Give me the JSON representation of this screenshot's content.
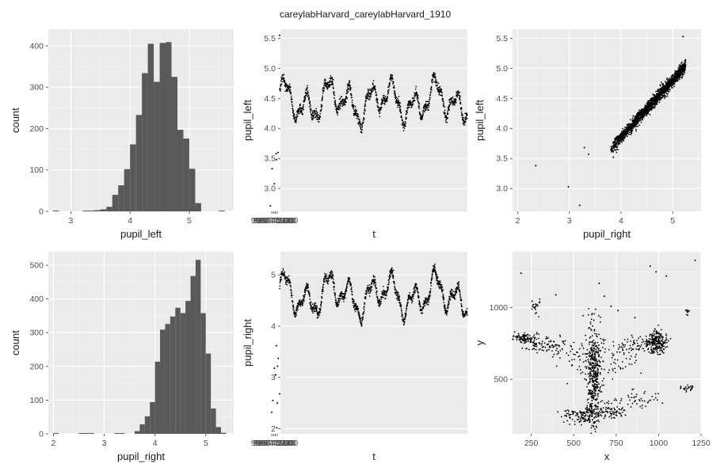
{
  "figure_title": "careylabHarvard_careylabHarvard_1910",
  "colors": {
    "panel": "#ebebeb",
    "grid_major": "#ffffff",
    "bar": "#595959",
    "point": "#000000",
    "text": "#4d4d4d"
  },
  "chart_data": [
    {
      "type": "bar",
      "xlabel": "pupil_left",
      "ylabel": "count",
      "xlim": [
        2.62,
        5.75
      ],
      "ylim": [
        0,
        440
      ],
      "xticks": [
        3,
        4,
        5
      ],
      "yticks": [
        0,
        100,
        200,
        300,
        400
      ],
      "bins": [
        {
          "x": 2.75,
          "v": 1
        },
        {
          "x": 3.25,
          "v": 1
        },
        {
          "x": 3.35,
          "v": 2
        },
        {
          "x": 3.45,
          "v": 3
        },
        {
          "x": 3.55,
          "v": 5
        },
        {
          "x": 3.65,
          "v": 11
        },
        {
          "x": 3.75,
          "v": 40
        },
        {
          "x": 3.85,
          "v": 63
        },
        {
          "x": 3.95,
          "v": 102
        },
        {
          "x": 4.05,
          "v": 162
        },
        {
          "x": 4.15,
          "v": 233
        },
        {
          "x": 4.25,
          "v": 334
        },
        {
          "x": 4.35,
          "v": 405
        },
        {
          "x": 4.45,
          "v": 313
        },
        {
          "x": 4.55,
          "v": 407
        },
        {
          "x": 4.65,
          "v": 409
        },
        {
          "x": 4.75,
          "v": 325
        },
        {
          "x": 4.85,
          "v": 197
        },
        {
          "x": 4.95,
          "v": 176
        },
        {
          "x": 5.05,
          "v": 103
        },
        {
          "x": 5.15,
          "v": 20
        },
        {
          "x": 5.55,
          "v": 1
        }
      ],
      "bin_width": 0.1
    },
    {
      "type": "scatter",
      "xlabel": "t",
      "ylabel": "pupil_left",
      "xlim": [
        998735500,
        998476300
      ],
      "ylim": [
        2.62,
        5.65
      ],
      "xticks": [
        998740000,
        998742500,
        998745000,
        998747500
      ],
      "xtick_labels": [
        "998740000",
        "998742500",
        "998745000",
        "998747500"
      ],
      "yticks": [
        3.0,
        3.5,
        4.0,
        4.5,
        5.0,
        5.5
      ],
      "ytick_labels": [
        "3.0",
        "3.5",
        "4.0",
        "4.5",
        "5.0",
        "5.5"
      ],
      "trend": {
        "x_start": 998736500,
        "x_end": 998476300,
        "mean": 4.45,
        "amplitude": 0.38
      },
      "outliers": [
        [
          998736800,
          5.55
        ],
        [
          998741000,
          3.48
        ],
        [
          998744000,
          3.08
        ],
        [
          998747000,
          3.33
        ],
        [
          998749500,
          2.71
        ],
        [
          998741500,
          3.58
        ],
        [
          998738800,
          3.6
        ]
      ]
    },
    {
      "type": "scatter",
      "xlabel": "pupil_right",
      "ylabel": "pupil_left",
      "xlim": [
        1.9,
        5.55
      ],
      "ylim": [
        2.62,
        5.65
      ],
      "xticks": [
        2,
        3,
        4,
        5
      ],
      "yticks": [
        3.0,
        3.5,
        4.0,
        4.5,
        5.0,
        5.5
      ],
      "ytick_labels": [
        "3.0",
        "3.5",
        "4.0",
        "4.5",
        "5.0",
        "5.5"
      ],
      "relation": {
        "slope": 0.95,
        "intercept": 0.05,
        "x_range": [
          3.8,
          5.25
        ]
      },
      "outliers": [
        [
          2.35,
          3.38
        ],
        [
          2.98,
          3.03
        ],
        [
          3.2,
          2.72
        ],
        [
          3.29,
          3.68
        ],
        [
          3.37,
          3.57
        ],
        [
          5.2,
          5.53
        ],
        [
          3.85,
          3.52
        ]
      ]
    },
    {
      "type": "bar",
      "xlabel": "pupil_right",
      "ylabel": "count",
      "xlim": [
        1.9,
        5.55
      ],
      "ylim": [
        0,
        540
      ],
      "xticks": [
        2,
        3,
        4,
        5
      ],
      "yticks": [
        0,
        100,
        200,
        300,
        400,
        500
      ],
      "bins": [
        {
          "x": 2.05,
          "v": 1
        },
        {
          "x": 2.55,
          "v": 1
        },
        {
          "x": 2.65,
          "v": 1
        },
        {
          "x": 2.75,
          "v": 2
        },
        {
          "x": 3.25,
          "v": 1
        },
        {
          "x": 3.35,
          "v": 2
        },
        {
          "x": 3.65,
          "v": 8
        },
        {
          "x": 3.75,
          "v": 28
        },
        {
          "x": 3.85,
          "v": 52
        },
        {
          "x": 3.95,
          "v": 94
        },
        {
          "x": 4.05,
          "v": 214
        },
        {
          "x": 4.15,
          "v": 309
        },
        {
          "x": 4.25,
          "v": 326
        },
        {
          "x": 4.35,
          "v": 348
        },
        {
          "x": 4.45,
          "v": 374
        },
        {
          "x": 4.55,
          "v": 358
        },
        {
          "x": 4.65,
          "v": 394
        },
        {
          "x": 4.75,
          "v": 468
        },
        {
          "x": 4.85,
          "v": 516
        },
        {
          "x": 4.95,
          "v": 358
        },
        {
          "x": 5.05,
          "v": 238
        },
        {
          "x": 5.15,
          "v": 75
        },
        {
          "x": 5.25,
          "v": 20
        },
        {
          "x": 5.35,
          "v": 3
        }
      ],
      "bin_width": 0.1
    },
    {
      "type": "scatter",
      "xlabel": "t",
      "ylabel": "pupil_right",
      "xlim": [
        998735500,
        998476300
      ],
      "ylim": [
        1.9,
        5.45
      ],
      "xticks": [
        998740000,
        998742500,
        998745000,
        998747500
      ],
      "xtick_labels": [
        "998740000",
        "998742500",
        "998745000",
        "998747500"
      ],
      "yticks": [
        2,
        3,
        4,
        5
      ],
      "trend": {
        "x_start": 998736500,
        "x_end": 998476300,
        "mean": 4.6,
        "amplitude": 0.45
      },
      "outliers": [
        [
          998736700,
          2.68
        ],
        [
          998739500,
          3.22
        ],
        [
          998740000,
          2.5
        ],
        [
          998740500,
          2.02
        ],
        [
          998742000,
          3.05
        ],
        [
          998744000,
          3.18
        ],
        [
          998746000,
          2.55
        ],
        [
          998747500,
          2.32
        ],
        [
          998741200,
          3.62
        ],
        [
          998738500,
          3.37
        ]
      ]
    },
    {
      "type": "scatter",
      "xlabel": "x",
      "ylabel": "y",
      "xlim": [
        140,
        1250
      ],
      "ylim": [
        120,
        1390
      ],
      "xticks": [
        250,
        500,
        750,
        1000,
        1250
      ],
      "yticks": [
        500,
        1000
      ],
      "clusters": [
        {
          "cx": 215,
          "cy": 790,
          "sx": 35,
          "sy": 18,
          "n": 90
        },
        {
          "cx": 340,
          "cy": 740,
          "sx": 60,
          "sy": 25,
          "n": 90
        },
        {
          "cx": 615,
          "cy": 520,
          "sx": 22,
          "sy": 170,
          "n": 420
        },
        {
          "cx": 540,
          "cy": 250,
          "sx": 55,
          "sy": 30,
          "n": 120
        },
        {
          "cx": 720,
          "cy": 280,
          "sx": 55,
          "sy": 30,
          "n": 90
        },
        {
          "cx": 990,
          "cy": 760,
          "sx": 30,
          "sy": 40,
          "n": 200
        },
        {
          "cx": 880,
          "cy": 740,
          "sx": 60,
          "sy": 25,
          "n": 80
        },
        {
          "cx": 1180,
          "cy": 435,
          "sx": 25,
          "sy": 12,
          "n": 25
        },
        {
          "cx": 275,
          "cy": 1010,
          "sx": 10,
          "sy": 25,
          "n": 18
        },
        {
          "cx": 720,
          "cy": 650,
          "sx": 80,
          "sy": 60,
          "n": 70
        },
        {
          "cx": 900,
          "cy": 360,
          "sx": 60,
          "sy": 30,
          "n": 40
        },
        {
          "cx": 500,
          "cy": 650,
          "sx": 70,
          "sy": 60,
          "n": 40
        },
        {
          "cx": 1170,
          "cy": 975,
          "sx": 8,
          "sy": 12,
          "n": 10
        }
      ],
      "scatter_points": [
        [
          190,
          1240
        ],
        [
          1215,
          1330
        ],
        [
          1045,
          1220
        ],
        [
          950,
          1290
        ],
        [
          985,
          1250
        ],
        [
          720,
          1010
        ],
        [
          395,
          1090
        ],
        [
          760,
          980
        ],
        [
          650,
          1170
        ],
        [
          300,
          1040
        ],
        [
          255,
          1045
        ],
        [
          680,
          1080
        ],
        [
          860,
          930
        ]
      ]
    }
  ]
}
